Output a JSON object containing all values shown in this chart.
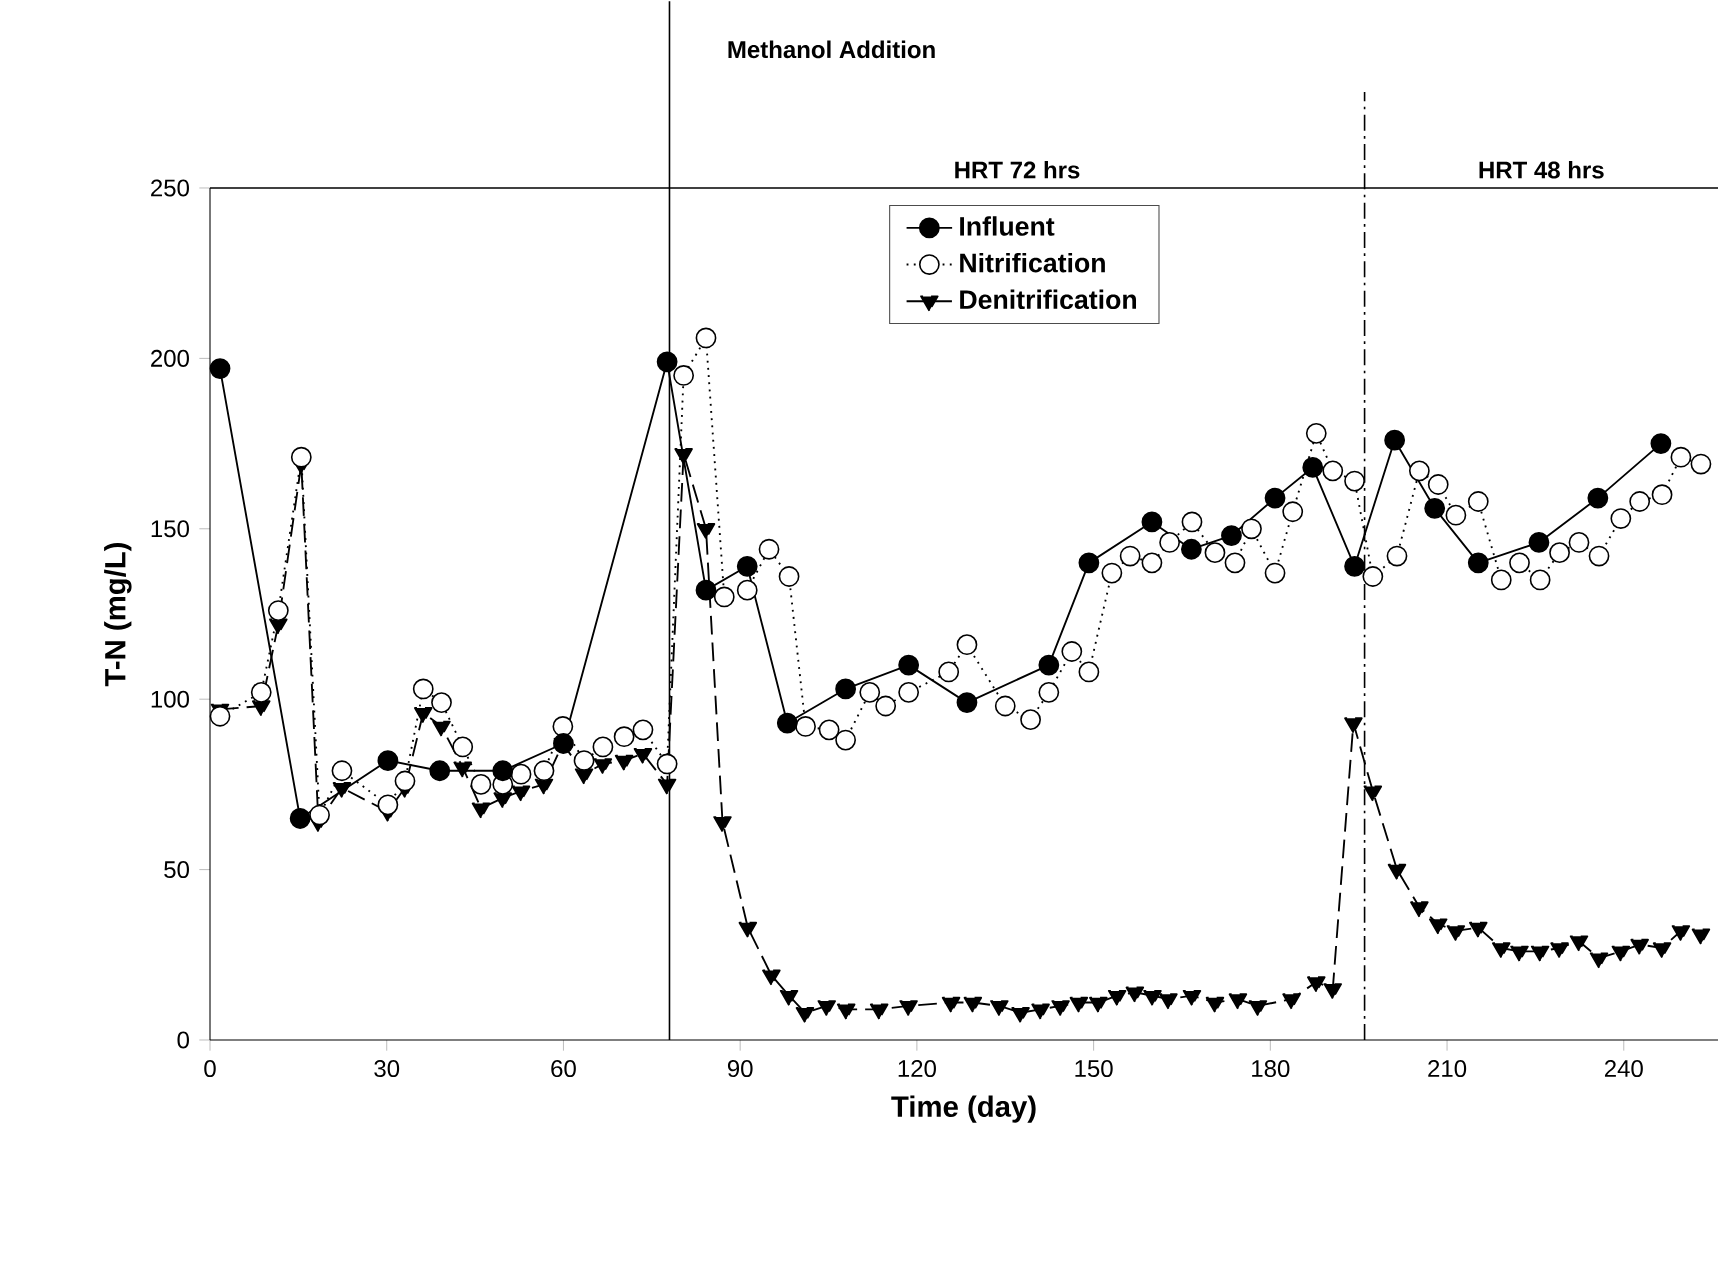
{
  "chart_data": {
    "type": "line",
    "xlabel": "Time (day)",
    "ylabel": "T-N (mg/L)",
    "xlim": [
      0,
      256
    ],
    "ylim": [
      0,
      250
    ],
    "xticks": [
      0,
      30,
      60,
      90,
      120,
      150,
      180,
      210,
      240
    ],
    "yticks": [
      0,
      50,
      100,
      150,
      200,
      250
    ],
    "legend": "top",
    "grid": false,
    "ref_lines": [
      {
        "axis": "x",
        "value": 78,
        "label": "Methanol Addition",
        "line_style": "solid",
        "color": "#000000"
      },
      {
        "axis": "x",
        "value": 196,
        "label": null,
        "line_style": "dashdot",
        "color": "#000000"
      }
    ],
    "annotations": [
      "HRT 72 hrs",
      "HRT 48 hrs"
    ],
    "series": [
      {
        "name": "Influent",
        "color": "#000000",
        "marker": "circle",
        "line_style": "solid",
        "x": [
          1.7,
          15.3,
          30.2,
          39,
          49.7,
          60,
          77.6,
          84.2,
          91.2,
          98,
          107.9,
          118.6,
          128.5,
          142.4,
          149.2,
          159.9,
          166.6,
          173.4,
          180.8,
          187.2,
          194.3,
          201.1,
          207.9,
          215.3,
          225.6,
          235.6,
          246.3
        ],
        "values": [
          197,
          65,
          82,
          79,
          79,
          87,
          199,
          132,
          139,
          93,
          103,
          110,
          99,
          110,
          140,
          152,
          144,
          148,
          159,
          168,
          139,
          176,
          156,
          140,
          146,
          159,
          175
        ]
      },
      {
        "name": "Nitrification",
        "color": "#ffffff",
        "marker": "circle",
        "line_style": "dotted",
        "x": [
          1.7,
          8.7,
          11.6,
          15.5,
          18.6,
          22.4,
          30.2,
          33.1,
          36.2,
          39.3,
          42.9,
          46,
          49.7,
          52.8,
          56.7,
          59.9,
          63.5,
          66.7,
          70.3,
          73.5,
          77.6,
          80.4,
          84.2,
          87.3,
          91.2,
          94.9,
          98.3,
          101.1,
          105.1,
          107.9,
          112,
          114.7,
          118.6,
          125.4,
          128.5,
          135,
          139.3,
          142.4,
          146.3,
          149.2,
          153.1,
          156.2,
          159.9,
          162.9,
          166.7,
          170.6,
          174,
          176.8,
          180.8,
          183.8,
          187.8,
          190.6,
          194.3,
          197.4,
          201.5,
          205.3,
          208.5,
          211.5,
          215.3,
          219.2,
          222.3,
          225.8,
          229.1,
          232.4,
          235.8,
          239.5,
          242.7,
          246.5,
          249.7,
          253.1
        ],
        "values": [
          95,
          102,
          126,
          171,
          66,
          79,
          69,
          76,
          103,
          99,
          86,
          75,
          75,
          78,
          79,
          92,
          82,
          86,
          89,
          91,
          81,
          195,
          206,
          130,
          132,
          144,
          136,
          92,
          91,
          88,
          102,
          98,
          102,
          108,
          116,
          98,
          94,
          102,
          114,
          108,
          137,
          142,
          140,
          146,
          152,
          143,
          140,
          150,
          137,
          155,
          178,
          167,
          164,
          136,
          142,
          167,
          163,
          154,
          158,
          135,
          140,
          135,
          143,
          146,
          142,
          153,
          158,
          160,
          171,
          169
        ]
      },
      {
        "name": "Denitrification",
        "color": "#000000",
        "marker": "triangle",
        "line_style": "dashed",
        "x": [
          1.7,
          8.7,
          11.6,
          15.5,
          18.4,
          22.4,
          30.2,
          33.1,
          36.2,
          39.3,
          42.9,
          46,
          49.7,
          52.8,
          56.7,
          59.9,
          63.5,
          66.7,
          70.3,
          73.5,
          77.6,
          80.4,
          84.2,
          87,
          91.3,
          95.3,
          98.3,
          101,
          104.7,
          108,
          113.6,
          118.6,
          125.8,
          129.5,
          134,
          137.6,
          141,
          144.4,
          147.5,
          150.8,
          154,
          157,
          160,
          162.7,
          166.7,
          170.6,
          174.5,
          177.9,
          183.6,
          187.8,
          190.6,
          194.1,
          197.4,
          201.5,
          205.3,
          208.5,
          211.5,
          215.3,
          219.2,
          222.3,
          225.8,
          229.1,
          232.4,
          235.8,
          239.5,
          242.7,
          246.5,
          249.7,
          253.1
        ],
        "values": [
          97,
          98,
          122,
          169,
          64,
          74,
          67,
          74,
          96,
          92,
          80,
          68,
          71,
          73,
          75,
          87,
          78,
          81,
          82,
          84,
          75,
          172,
          150,
          64,
          33,
          19,
          13,
          8,
          10,
          9,
          9,
          10,
          11,
          11,
          10,
          8,
          9,
          10,
          11,
          11,
          13,
          14,
          13,
          12,
          13,
          11,
          12,
          10,
          12,
          17,
          15,
          93,
          73,
          50,
          39,
          34,
          32,
          33,
          27,
          26,
          26,
          27,
          29,
          24,
          26,
          28,
          27,
          32,
          31
        ]
      }
    ]
  }
}
